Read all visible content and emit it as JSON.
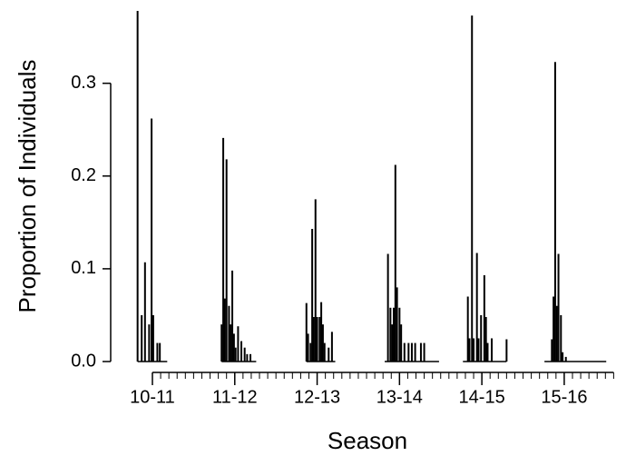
{
  "chart_data": {
    "type": "spike",
    "xlabel": "Season",
    "ylabel": "Proportion of Individuals",
    "series": [
      {
        "color": "#000000",
        "x": [
          -1.8,
          -1.3,
          -0.9,
          -0.4,
          -0.1,
          0.1,
          0.6,
          0.9,
          1.8
        ],
        "values": [
          0.378,
          0.05,
          0.107,
          0.04,
          0.262,
          0.05,
          0.02,
          0.02,
          0
        ]
      },
      {
        "color": "#000000",
        "x": [
          8.4,
          8.6,
          8.8,
          9.0,
          9.3,
          9.5,
          9.7,
          9.9,
          10.1,
          10.4,
          10.8,
          11.2,
          11.5,
          11.9,
          12.6
        ],
        "values": [
          0.04,
          0.241,
          0.068,
          0.218,
          0.06,
          0.04,
          0.098,
          0.03,
          0.015,
          0.038,
          0.022,
          0.015,
          0.008,
          0.008,
          0
        ]
      },
      {
        "color": "#000000",
        "x": [
          18.7,
          18.9,
          19.2,
          19.4,
          19.6,
          19.8,
          20.0,
          20.3,
          20.5,
          20.7,
          20.9,
          21.4,
          21.8,
          22.2
        ],
        "values": [
          0.063,
          0.03,
          0.02,
          0.143,
          0.048,
          0.175,
          0.048,
          0.048,
          0.064,
          0.04,
          0.02,
          0.015,
          0.032,
          0
        ]
      },
      {
        "color": "#000000",
        "x": [
          28.2,
          28.6,
          28.9,
          29.1,
          29.3,
          29.5,
          29.7,
          30.0,
          30.2,
          30.6,
          31.1,
          31.5,
          31.9,
          32.6,
          33.0,
          34.8
        ],
        "values": [
          0,
          0.116,
          0.058,
          0.04,
          0.058,
          0.212,
          0.08,
          0.058,
          0.04,
          0.02,
          0.02,
          0.02,
          0.02,
          0.02,
          0.02,
          0
        ]
      },
      {
        "color": "#000000",
        "x": [
          37.7,
          38.3,
          38.5,
          38.8,
          39.0,
          39.4,
          39.6,
          39.9,
          40.3,
          40.5,
          40.7,
          41.2,
          43.0
        ],
        "values": [
          0,
          0.07,
          0.025,
          0.373,
          0.025,
          0.117,
          0.025,
          0.05,
          0.093,
          0.048,
          0.02,
          0.025,
          0.024
        ]
      },
      {
        "color": "#000000",
        "x": [
          47.6,
          48.5,
          48.7,
          48.9,
          49.1,
          49.3,
          49.6,
          49.8,
          50.2,
          55.1
        ],
        "values": [
          0,
          0.024,
          0.07,
          0.323,
          0.06,
          0.116,
          0.05,
          0.01,
          0.005,
          0
        ]
      }
    ],
    "xlim": [
      -5,
      57.5
    ],
    "ylim": [
      0,
      0.38
    ],
    "xticks": [
      {
        "value": 0,
        "label": "10-11"
      },
      {
        "value": 10,
        "label": "11-12"
      },
      {
        "value": 20,
        "label": "12-13"
      },
      {
        "value": 30,
        "label": "13-14"
      },
      {
        "value": 40,
        "label": "14-15"
      },
      {
        "value": 50,
        "label": "15-16"
      }
    ],
    "xminorticks": [
      0,
      1,
      2,
      3,
      4,
      5,
      6,
      7,
      8,
      9,
      10,
      11,
      12,
      13,
      14,
      15,
      16,
      17,
      18,
      19,
      20,
      21,
      22,
      23,
      24,
      25,
      26,
      27,
      28,
      29,
      30,
      31,
      32,
      33,
      34,
      35,
      36,
      37,
      38,
      39,
      40,
      41,
      42,
      43,
      44,
      45,
      46,
      47,
      48,
      49,
      50,
      51,
      52,
      53,
      54,
      55,
      56
    ],
    "yticks": [
      {
        "value": 0,
        "label": "0.0"
      },
      0.1,
      0.2,
      0.3
    ]
  }
}
